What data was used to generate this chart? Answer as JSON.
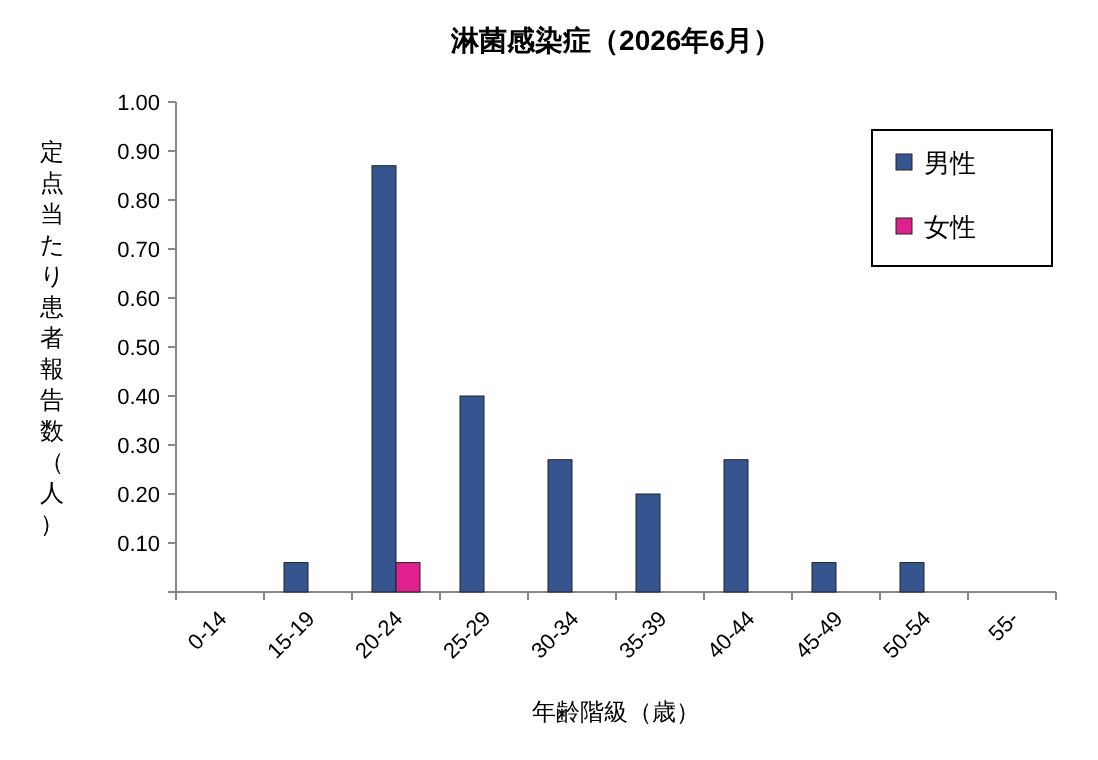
{
  "chart_data": {
    "type": "bar",
    "title": "淋菌感染症（2026年6月）",
    "xlabel": "年齢階級（歳）",
    "ylabel": "定点当たり患者報告数（人）",
    "categories": [
      "0-14",
      "15-19",
      "20-24",
      "25-29",
      "30-34",
      "35-39",
      "40-44",
      "45-49",
      "50-54",
      "55-"
    ],
    "series": [
      {
        "name": "男性",
        "color": "#34558f",
        "values": [
          0,
          0.06,
          0.87,
          0.4,
          0.27,
          0.2,
          0.27,
          0.06,
          0.06,
          0
        ]
      },
      {
        "name": "女性",
        "color": "#e0208c",
        "values": [
          0,
          0,
          0.06,
          0,
          0,
          0,
          0,
          0,
          0,
          0
        ]
      }
    ],
    "ylim": [
      0,
      1
    ],
    "yticks": [
      {
        "value": 0,
        "label": null
      },
      {
        "value": 0.1,
        "label": "0.10"
      },
      {
        "value": 0.2,
        "label": "0.20"
      },
      {
        "value": 0.3,
        "label": "0.30"
      },
      {
        "value": 0.4,
        "label": "0.40"
      },
      {
        "value": 0.5,
        "label": "0.50"
      },
      {
        "value": 0.6,
        "label": "0.60"
      },
      {
        "value": 0.7,
        "label": "0.70"
      },
      {
        "value": 0.8,
        "label": "0.80"
      },
      {
        "value": 0.9,
        "label": "0.90"
      },
      {
        "value": 1,
        "label": "1.00"
      }
    ],
    "legend": "top right",
    "grid": false
  }
}
